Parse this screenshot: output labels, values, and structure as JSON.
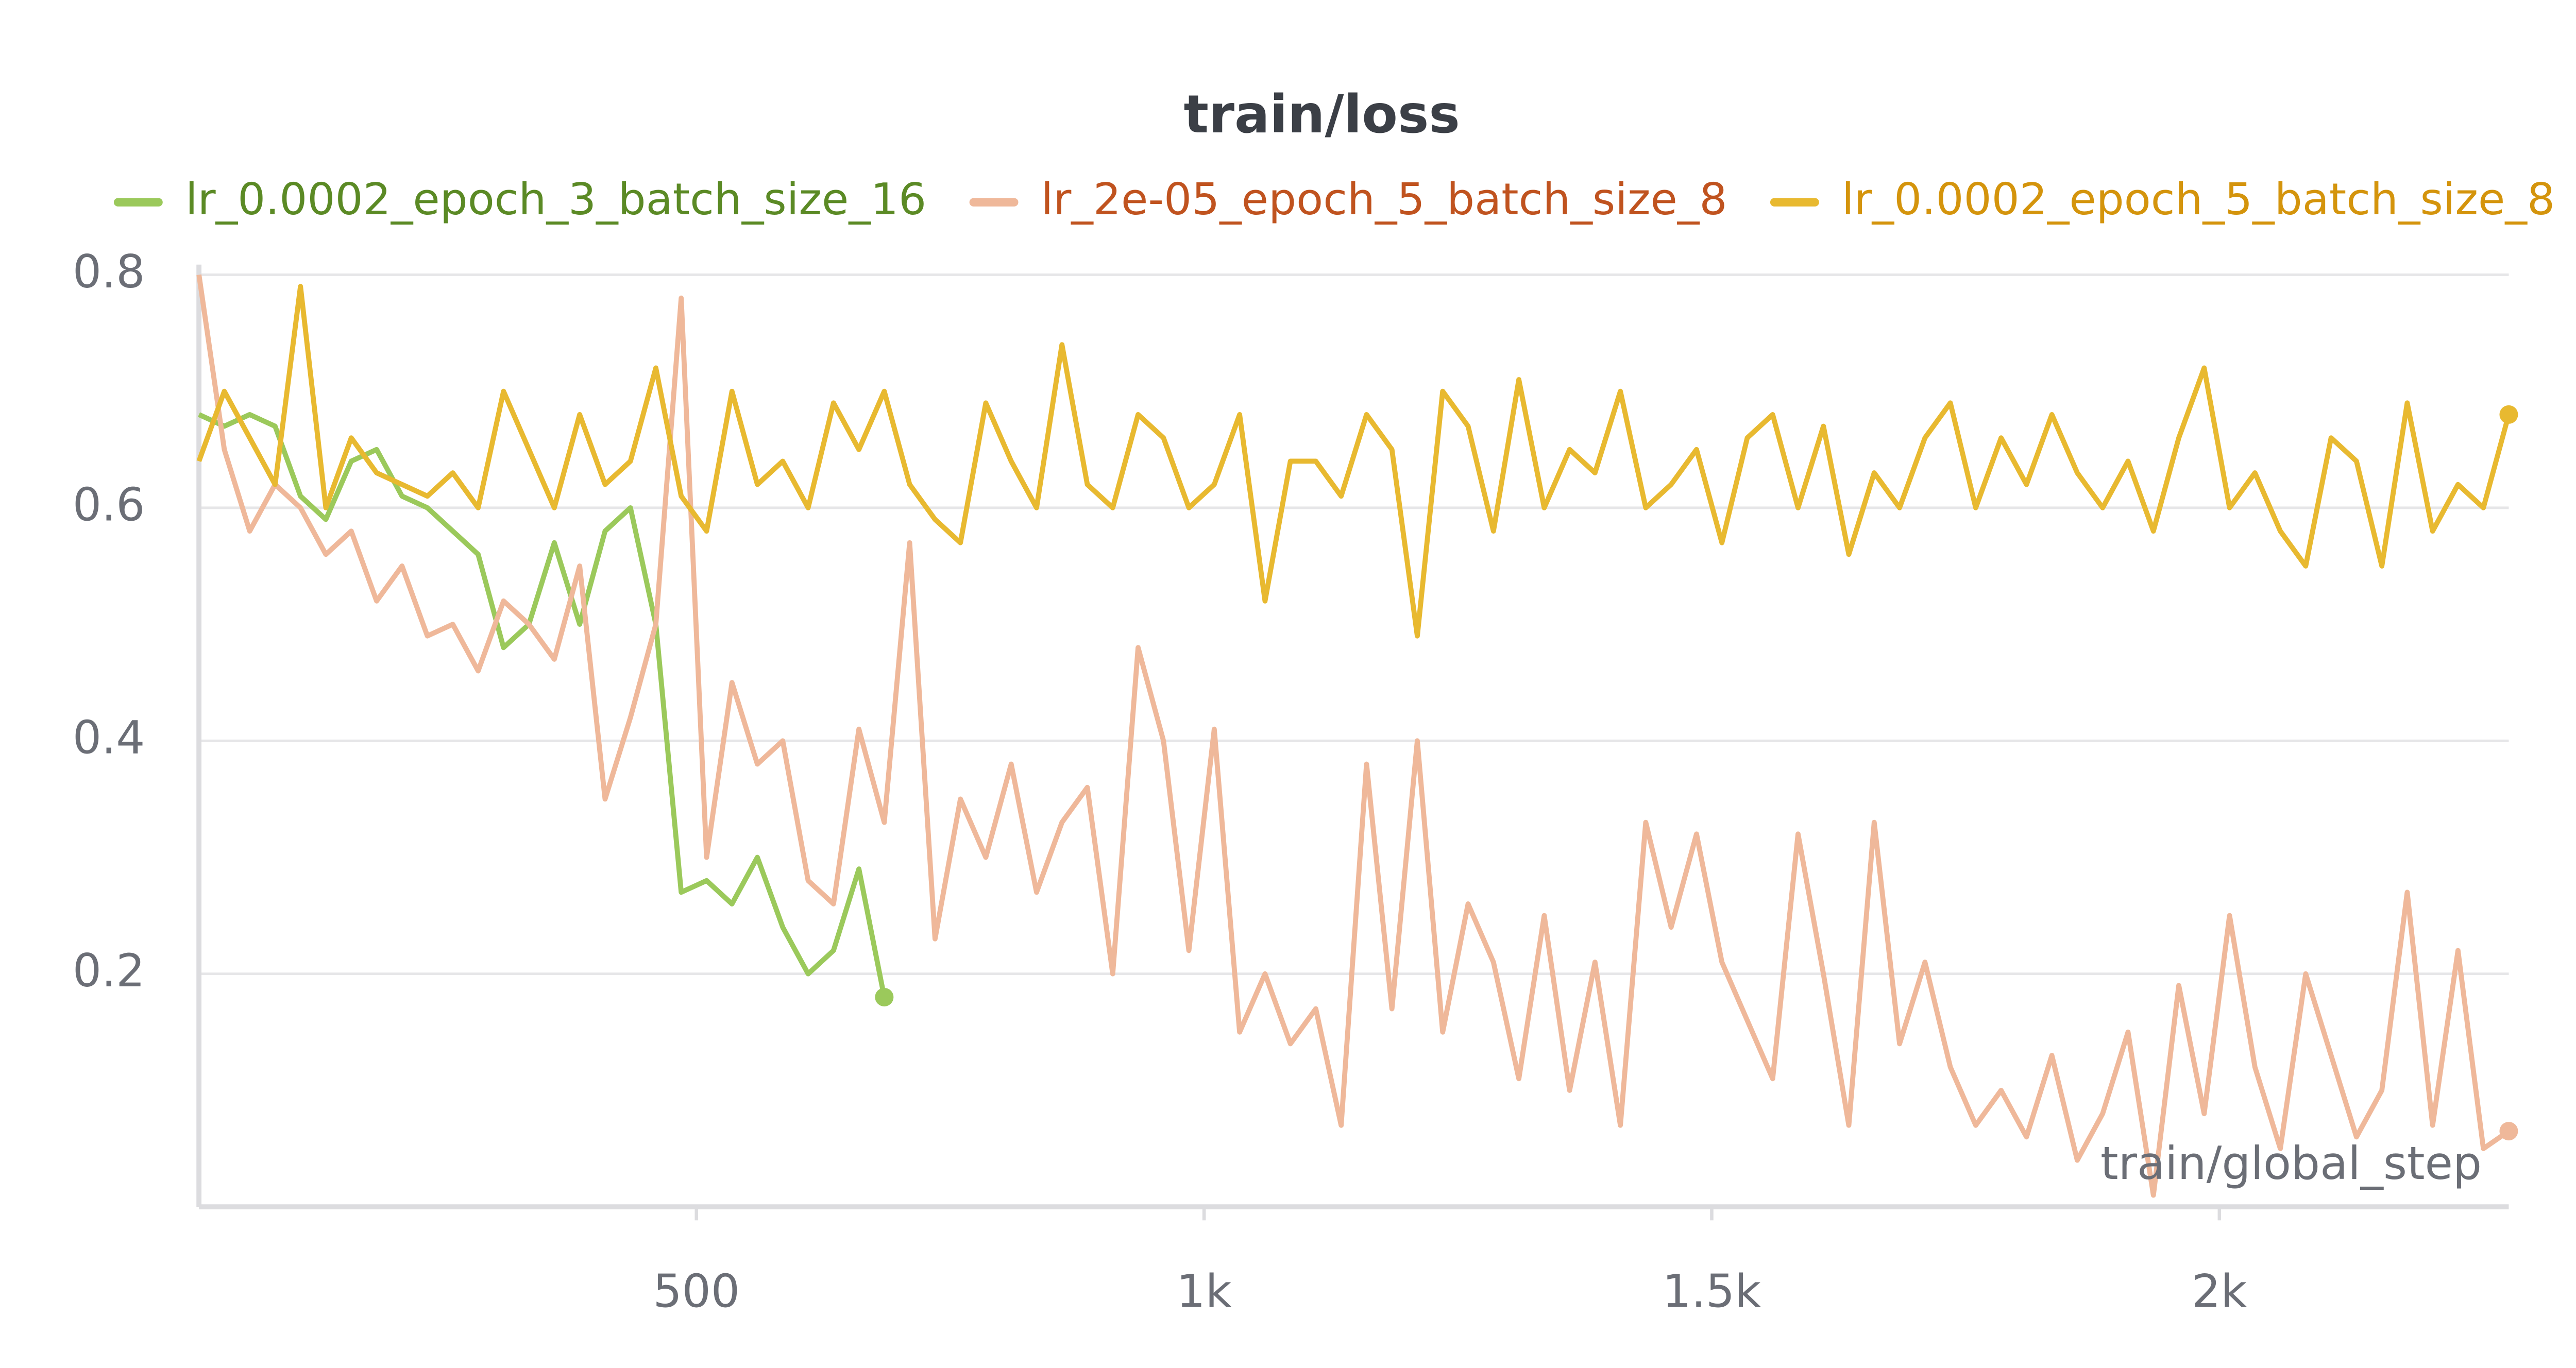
{
  "chart_data": {
    "type": "line",
    "title": "train/loss",
    "x_label": "train/global_step",
    "x": [
      10,
      35,
      60,
      85,
      110,
      135,
      160,
      185,
      210,
      235,
      260,
      285,
      310,
      335,
      360,
      385,
      410,
      435,
      460,
      485,
      510,
      535,
      560,
      585,
      610,
      635,
      660,
      685,
      710,
      735,
      760,
      785,
      810,
      835,
      860,
      885,
      910,
      935,
      960,
      985,
      1010,
      1035,
      1060,
      1085,
      1110,
      1135,
      1160,
      1185,
      1210,
      1235,
      1260,
      1285,
      1310,
      1335,
      1360,
      1385,
      1410,
      1435,
      1460,
      1485,
      1510,
      1535,
      1560,
      1585,
      1610,
      1635,
      1660,
      1685,
      1710,
      1735,
      1760,
      1785,
      1810,
      1835,
      1860,
      1885,
      1910,
      1935,
      1960,
      1985,
      2010,
      2035,
      2060,
      2085,
      2110,
      2135,
      2160,
      2185,
      2210,
      2235,
      2260,
      2285
    ],
    "series": [
      {
        "name": "lr_0.0002_epoch_3_batch_size_16",
        "color": "#9bc95b",
        "text_color": "#5b8a25",
        "x": [
          10,
          35,
          60,
          85,
          110,
          135,
          160,
          185,
          210,
          235,
          260,
          285,
          310,
          335,
          360,
          385,
          410,
          435,
          460,
          485,
          510,
          535,
          560,
          585,
          610,
          635,
          660,
          685
        ],
        "values": [
          0.68,
          0.67,
          0.68,
          0.67,
          0.61,
          0.59,
          0.64,
          0.65,
          0.61,
          0.6,
          0.58,
          0.56,
          0.48,
          0.5,
          0.57,
          0.5,
          0.58,
          0.6,
          0.5,
          0.27,
          0.28,
          0.26,
          0.3,
          0.24,
          0.2,
          0.22,
          0.29,
          0.18
        ]
      },
      {
        "name": "lr_2e-05_epoch_5_batch_size_8",
        "color": "#efb89a",
        "text_color": "#c0531f",
        "values": [
          0.8,
          0.65,
          0.58,
          0.62,
          0.6,
          0.56,
          0.58,
          0.52,
          0.55,
          0.49,
          0.5,
          0.46,
          0.52,
          0.5,
          0.47,
          0.55,
          0.35,
          0.42,
          0.5,
          0.78,
          0.3,
          0.45,
          0.38,
          0.4,
          0.28,
          0.26,
          0.41,
          0.33,
          0.57,
          0.23,
          0.35,
          0.3,
          0.38,
          0.27,
          0.33,
          0.36,
          0.2,
          0.48,
          0.4,
          0.22,
          0.41,
          0.15,
          0.2,
          0.14,
          0.17,
          0.07,
          0.38,
          0.17,
          0.4,
          0.15,
          0.26,
          0.21,
          0.11,
          0.25,
          0.1,
          0.21,
          0.07,
          0.33,
          0.24,
          0.32,
          0.21,
          0.16,
          0.11,
          0.32,
          0.2,
          0.07,
          0.33,
          0.14,
          0.21,
          0.12,
          0.07,
          0.1,
          0.06,
          0.13,
          0.04,
          0.08,
          0.15,
          0.01,
          0.19,
          0.08,
          0.25,
          0.12,
          0.05,
          0.2,
          0.13,
          0.06,
          0.1,
          0.27,
          0.07,
          0.22,
          0.05,
          0.065
        ]
      },
      {
        "name": "lr_0.0002_epoch_5_batch_size_8",
        "color": "#e8b930",
        "text_color": "#d4940c",
        "values": [
          0.64,
          0.7,
          0.66,
          0.62,
          0.79,
          0.6,
          0.66,
          0.63,
          0.62,
          0.61,
          0.63,
          0.6,
          0.7,
          0.65,
          0.6,
          0.68,
          0.62,
          0.64,
          0.72,
          0.61,
          0.58,
          0.7,
          0.62,
          0.64,
          0.6,
          0.69,
          0.65,
          0.7,
          0.62,
          0.59,
          0.57,
          0.69,
          0.64,
          0.6,
          0.74,
          0.62,
          0.6,
          0.68,
          0.66,
          0.6,
          0.62,
          0.68,
          0.52,
          0.64,
          0.64,
          0.61,
          0.68,
          0.65,
          0.49,
          0.7,
          0.67,
          0.58,
          0.71,
          0.6,
          0.65,
          0.63,
          0.7,
          0.6,
          0.62,
          0.65,
          0.57,
          0.66,
          0.68,
          0.6,
          0.67,
          0.56,
          0.63,
          0.6,
          0.66,
          0.69,
          0.6,
          0.66,
          0.62,
          0.68,
          0.63,
          0.6,
          0.64,
          0.58,
          0.66,
          0.72,
          0.6,
          0.63,
          0.58,
          0.55,
          0.66,
          0.64,
          0.55,
          0.69,
          0.58,
          0.62,
          0.6,
          0.68
        ]
      }
    ],
    "xlim": [
      10,
      2285
    ],
    "ylim": [
      0,
      0.8
    ],
    "xticks": [
      500,
      {
        "value": 1000,
        "label": "1k"
      },
      {
        "value": 1500,
        "label": "1.5k"
      },
      {
        "value": 2000,
        "label": "2k"
      }
    ],
    "yticks": [
      0.2,
      0.4,
      0.6,
      0.8
    ],
    "grid": true
  }
}
